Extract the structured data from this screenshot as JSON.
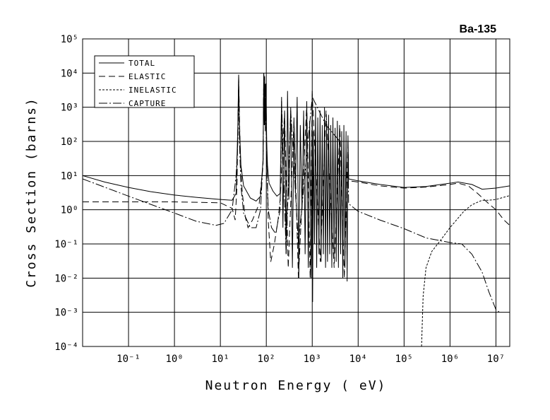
{
  "chart_data": {
    "type": "line",
    "title": "Ba-135",
    "x_label": "Neutron Energy ( eV)",
    "y_label": "Cross Section (barns)",
    "x_log": true,
    "y_log": true,
    "grid": true,
    "legend_position": "upper left",
    "xlim": [
      0.01,
      20000000
    ],
    "ylim": [
      0.0001,
      100000
    ],
    "xticks": [
      {
        "value": 0.1,
        "label": "10⁻¹"
      },
      {
        "value": 1,
        "label": "10⁰"
      },
      {
        "value": 10,
        "label": "10¹"
      },
      {
        "value": 100,
        "label": "10²"
      },
      {
        "value": 1000,
        "label": "10³"
      },
      {
        "value": 10000,
        "label": "10⁴"
      },
      {
        "value": 100000,
        "label": "10⁵"
      },
      {
        "value": 1000000,
        "label": "10⁶"
      },
      {
        "value": 10000000,
        "label": "10⁷"
      }
    ],
    "yticks": [
      {
        "value": 0.0001,
        "label": "10⁻⁴"
      },
      {
        "value": 0.001,
        "label": "10⁻³"
      },
      {
        "value": 0.01,
        "label": "10⁻²"
      },
      {
        "value": 0.1,
        "label": "10⁻¹"
      },
      {
        "value": 1,
        "label": "10⁰"
      },
      {
        "value": 10,
        "label": "10¹"
      },
      {
        "value": 100,
        "label": "10²"
      },
      {
        "value": 1000,
        "label": "10³"
      },
      {
        "value": 10000,
        "label": "10⁴"
      },
      {
        "value": 100000,
        "label": "10⁵"
      }
    ],
    "series": [
      {
        "name": "TOTAL",
        "color": "#000000",
        "dash": "none",
        "x": [
          0.01,
          0.03,
          0.1,
          0.3,
          1,
          3,
          10,
          18,
          22,
          24,
          25,
          26,
          28,
          32,
          45,
          60,
          75,
          85,
          88,
          90,
          92,
          95,
          98,
          102,
          106,
          115,
          140,
          170,
          200,
          215,
          230,
          250,
          270,
          290,
          310,
          340,
          370,
          400,
          430,
          470,
          510,
          550,
          600,
          650,
          700,
          760,
          820,
          880,
          950,
          1000,
          1020,
          1060,
          1120,
          1180,
          1250,
          1320,
          1400,
          1480,
          1560,
          1650,
          1750,
          1850,
          1950,
          2050,
          2150,
          2270,
          2400,
          2530,
          2670,
          2820,
          2980,
          3150,
          3330,
          3520,
          3720,
          3930,
          4150,
          4380,
          4630,
          4890,
          5160,
          5450,
          5750,
          6000,
          6200,
          10000,
          30000,
          100000,
          300000,
          1000000,
          1500000,
          3000000,
          5000000,
          10000000,
          20000000
        ],
        "values": [
          10,
          6.5,
          4.5,
          3.4,
          2.7,
          2.3,
          2.0,
          1.9,
          3,
          300,
          9000,
          300,
          20,
          5,
          2.2,
          1.8,
          2.5,
          30,
          10000,
          300,
          8000,
          200,
          5000,
          100,
          20,
          6,
          3.5,
          2.5,
          3,
          2000,
          0.3,
          800,
          0.05,
          3000,
          2,
          1000,
          0.02,
          500,
          3,
          2000,
          0.01,
          300,
          1,
          800,
          0.05,
          1500,
          0.02,
          400,
          0.01,
          3000,
          0.002,
          200,
          0.1,
          1000,
          0.02,
          500,
          0.05,
          800,
          0.03,
          300,
          0.05,
          1000,
          0.02,
          400,
          0.03,
          600,
          0.05,
          300,
          0.02,
          500,
          0.04,
          250,
          0.03,
          400,
          0.02,
          300,
          0.05,
          200,
          0.01,
          300,
          0.02,
          200,
          0.008,
          150,
          8,
          7,
          5.5,
          4.5,
          4.8,
          6,
          6.5,
          5.5,
          4,
          4.3,
          5
        ]
      },
      {
        "name": "ELASTIC",
        "color": "#000000",
        "dash": "9,5",
        "x": [
          0.01,
          1,
          10,
          18,
          21,
          23,
          25,
          27,
          30,
          35,
          40,
          50,
          70,
          85,
          88,
          92,
          98,
          104,
          110,
          125,
          150,
          180,
          200,
          250,
          300,
          400,
          500,
          760,
          900,
          1000,
          1500,
          2000,
          3000,
          4000,
          5000,
          6000,
          6200,
          10000,
          30000,
          100000,
          300000,
          1000000,
          1500000,
          2500000,
          4000000,
          7000000,
          10000000,
          15000000,
          20000000
        ],
        "values": [
          1.7,
          1.7,
          1.6,
          1.1,
          0.5,
          5,
          8000,
          50,
          3,
          0.6,
          0.3,
          0.5,
          1.5,
          20,
          9000,
          5000,
          3000,
          10,
          0.5,
          0.03,
          0.1,
          0.5,
          2,
          700,
          0.02,
          400,
          0.01,
          1200,
          0.01,
          2500,
          0.03,
          800,
          0.02,
          250,
          0.01,
          100,
          7,
          6.5,
          5,
          4.3,
          4.6,
          5.5,
          6,
          5,
          3,
          1.5,
          1,
          0.5,
          0.35
        ]
      },
      {
        "name": "INELASTIC",
        "color": "#000000",
        "dash": "3,2",
        "x": [
          240000,
          260000,
          300000,
          400000,
          600000,
          1000000,
          2000000,
          3000000,
          5000000,
          7000000,
          10000000,
          20000000
        ],
        "values": [
          0.0001,
          0.003,
          0.02,
          0.06,
          0.12,
          0.3,
          0.9,
          1.4,
          1.9,
          1.9,
          2,
          2.6
        ]
      },
      {
        "name": "CAPTURE",
        "color": "#000000",
        "dash": "12,3,2,3",
        "x": [
          0.01,
          0.03,
          0.1,
          0.3,
          1,
          3,
          8,
          12,
          18,
          22,
          24,
          25,
          26,
          28,
          32,
          45,
          60,
          75,
          85,
          88,
          92,
          95,
          100,
          110,
          130,
          160,
          200,
          215,
          270,
          340,
          500,
          1000,
          2000,
          4000,
          6000,
          6200,
          10000,
          30000,
          100000,
          300000,
          1000000,
          1800000,
          3000000,
          5000000,
          7000000,
          10000000,
          12000000
        ],
        "values": [
          8,
          4.6,
          2.5,
          1.45,
          0.8,
          0.46,
          0.35,
          0.4,
          1,
          10,
          100,
          3000,
          100,
          5,
          0.8,
          0.3,
          0.3,
          1,
          30,
          10000,
          300,
          5000,
          100,
          1,
          0.3,
          0.2,
          1,
          1500,
          0.05,
          800,
          0.1,
          2000,
          300,
          100,
          100,
          1.5,
          0.9,
          0.5,
          0.28,
          0.15,
          0.11,
          0.1,
          0.05,
          0.015,
          0.004,
          0.0012,
          0.001
        ]
      }
    ]
  }
}
